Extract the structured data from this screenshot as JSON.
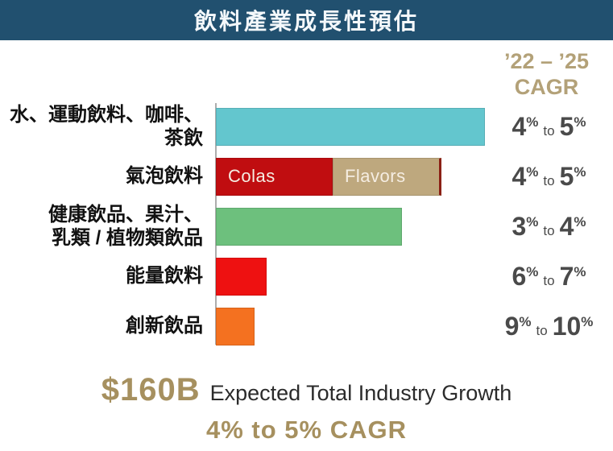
{
  "title_bar": {
    "title": "飲料產業成長性預估"
  },
  "cagr_column": {
    "header_line1": "’22 – ’25",
    "header_line2": "CAGR"
  },
  "symbols": {
    "percent": "%",
    "to": "to"
  },
  "chart_data": {
    "type": "bar",
    "orientation": "horizontal",
    "title": "飲料產業成長性預估",
    "value_column_header": "’22 – ’25 CAGR",
    "xlabel": "",
    "ylabel": "",
    "bar_length_unit": "percent of longest bar",
    "rows": [
      {
        "category": "水、運動飲料、咖啡、茶飲",
        "label_lines": [
          "水、運動飲料、咖啡、",
          "茶飲"
        ],
        "cagr": {
          "low": "4",
          "high": "5"
        },
        "segments": [
          {
            "name": "",
            "length_pct": 100,
            "color": "#63C6CE"
          }
        ]
      },
      {
        "category": "氣泡飲料",
        "label_lines": [
          "氣泡飲料"
        ],
        "cagr": {
          "low": "4",
          "high": "5"
        },
        "segments": [
          {
            "name": "Colas",
            "length_pct": 43.4,
            "color": "#C00D10"
          },
          {
            "name": "Flavors",
            "length_pct": 40.4,
            "color": "#BEA87E",
            "edge_color": "#8B2015"
          }
        ]
      },
      {
        "category": "健康飲品、果汁、乳類 / 植物類飲品",
        "label_lines": [
          "健康飲品、果汁、",
          "乳類 / 植物類飲品"
        ],
        "cagr": {
          "low": "3",
          "high": "4"
        },
        "segments": [
          {
            "name": "",
            "length_pct": 69.3,
            "color": "#6DC07D"
          }
        ]
      },
      {
        "category": "能量飲料",
        "label_lines": [
          "能量飲料"
        ],
        "cagr": {
          "low": "6",
          "high": "7"
        },
        "segments": [
          {
            "name": "",
            "length_pct": 19,
            "color": "#EE1111"
          }
        ]
      },
      {
        "category": "創新飲品",
        "label_lines": [
          "創新飲品"
        ],
        "cagr": {
          "low": "9",
          "high": "10"
        },
        "segments": [
          {
            "name": "",
            "length_pct": 14.5,
            "color": "#F47120"
          }
        ]
      }
    ]
  },
  "footer": {
    "amount": "$160B",
    "headline": "Expected Total Industry Growth",
    "sub": "4% to 5% CAGR"
  },
  "colors": {
    "header_bg": "#21506F",
    "header_text": "#F4F8FB",
    "tan_header": "#B3A178",
    "value_text": "#4A4A4A",
    "gold_footer": "#A6905F",
    "axis": "#ADADAD"
  }
}
